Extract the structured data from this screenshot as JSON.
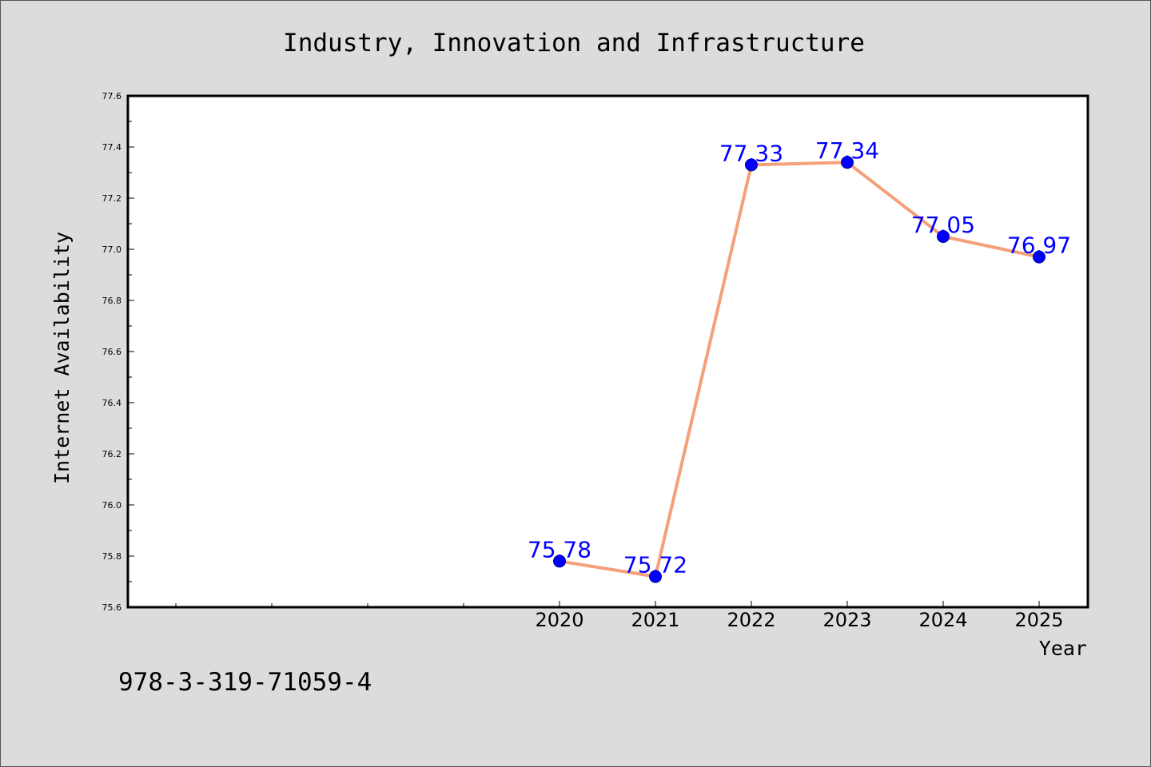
{
  "chart_data": {
    "type": "line",
    "title": "Industry, Innovation and Infrastructure",
    "xlabel": "Year",
    "ylabel": "Internet Availability",
    "x": [
      "2020",
      "2021",
      "2022",
      "2023",
      "2024",
      "2025"
    ],
    "series": [
      {
        "values": [
          75.78,
          75.72,
          77.33,
          77.34,
          77.05,
          76.97
        ]
      }
    ],
    "data_labels": [
      "75.78",
      "75.72",
      "77.33",
      "77.34",
      "77.05",
      "76.97"
    ],
    "ylim": [
      75.6,
      77.6
    ],
    "yticks": [
      "75.6",
      "75.8",
      "76.0",
      "76.2",
      "76.4",
      "76.6",
      "76.8",
      "77.0",
      "77.2",
      "77.4",
      "77.6"
    ],
    "grid": false,
    "legend": "none",
    "colors": {
      "line": "#f4a07a",
      "marker": "#0000ff",
      "data_label": "#0000ff",
      "background": "#dcdcdc",
      "plot_background": "#ffffff"
    }
  },
  "footnote": "978-3-319-71059-4"
}
